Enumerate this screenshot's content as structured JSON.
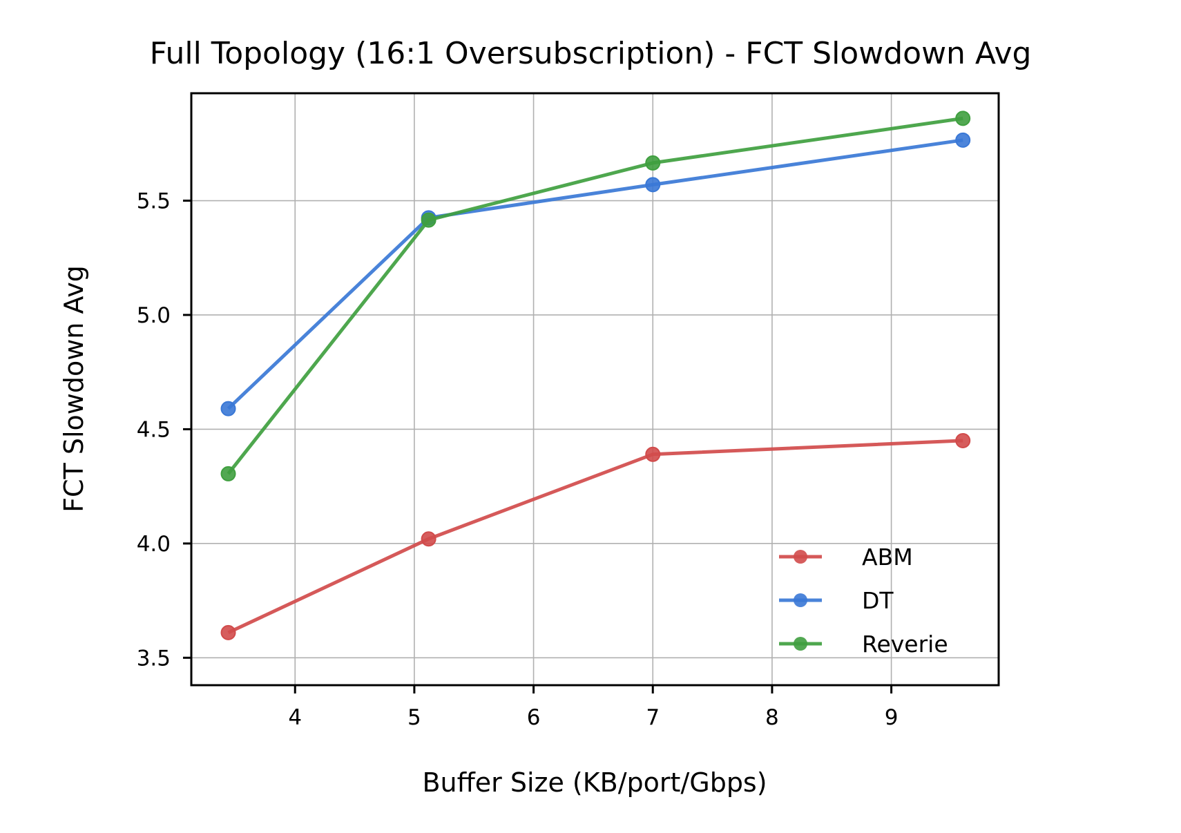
{
  "chart_data": {
    "type": "line",
    "title": "Full Topology (16:1 Oversubscription) - FCT Slowdown Avg",
    "xlabel": "Buffer Size (KB/port/Gbps)",
    "ylabel": "FCT Slowdown Avg",
    "xlim": [
      3.13,
      9.9
    ],
    "ylim": [
      3.38,
      5.97
    ],
    "xticks": [
      4,
      5,
      6,
      7,
      8,
      9
    ],
    "yticks": [
      3.5,
      4.0,
      4.5,
      5.0,
      5.5
    ],
    "xtick_labels": [
      "4",
      "5",
      "6",
      "7",
      "8",
      "9"
    ],
    "ytick_labels": [
      "3.5",
      "4.0",
      "4.5",
      "5.0",
      "5.5"
    ],
    "grid": true,
    "legend_position": "lower-right",
    "series": [
      {
        "name": "ABM",
        "color": "#d14b4b",
        "x": [
          3.44,
          5.12,
          7.0,
          9.6
        ],
        "y": [
          3.61,
          4.02,
          4.39,
          4.45
        ]
      },
      {
        "name": "DT",
        "color": "#3a78d6",
        "x": [
          3.44,
          5.12,
          7.0,
          9.6
        ],
        "y": [
          4.59,
          5.425,
          5.57,
          5.765
        ]
      },
      {
        "name": "Reverie",
        "color": "#3f9f3f",
        "x": [
          3.44,
          5.12,
          7.0,
          9.6
        ],
        "y": [
          4.305,
          5.415,
          5.665,
          5.86
        ]
      }
    ]
  }
}
